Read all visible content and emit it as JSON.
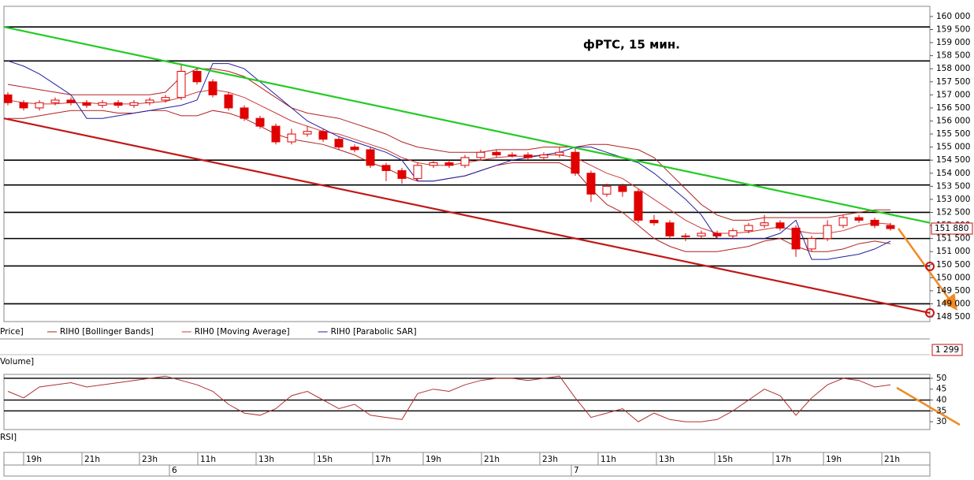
{
  "chart_data": {
    "type": "candlestick",
    "title": "фРТС,   15 мин.",
    "xlim": [
      -0.25,
      58.5
    ],
    "ylim": [
      148320,
      160390
    ],
    "yticks": [
      {
        "value": 160000,
        "label": "160 000"
      },
      {
        "value": 159500,
        "label": "159 500"
      },
      {
        "value": 159000,
        "label": "159 000"
      },
      {
        "value": 158500,
        "label": "158 500"
      },
      {
        "value": 158000,
        "label": "158 000"
      },
      {
        "value": 157500,
        "label": "157 500"
      },
      {
        "value": 157000,
        "label": "157 000"
      },
      {
        "value": 156500,
        "label": "156 500"
      },
      {
        "value": 156000,
        "label": "156 000"
      },
      {
        "value": 155500,
        "label": "155 500"
      },
      {
        "value": 155000,
        "label": "155 000"
      },
      {
        "value": 154500,
        "label": "154 500"
      },
      {
        "value": 154000,
        "label": "154 000"
      },
      {
        "value": 153500,
        "label": "153 500"
      },
      {
        "value": 153000,
        "label": "153 000"
      },
      {
        "value": 152500,
        "label": "152 500"
      },
      {
        "value": 152000,
        "label": "152 000"
      },
      {
        "value": 151500,
        "label": "151 500"
      },
      {
        "value": 151000,
        "label": "151 000"
      },
      {
        "value": 150500,
        "label": "150 500"
      },
      {
        "value": 150000,
        "label": "150 000"
      },
      {
        "value": 149500,
        "label": "149 500"
      },
      {
        "value": 149000,
        "label": "149 000"
      },
      {
        "value": 148500,
        "label": "148 500"
      }
    ],
    "ohlc": {
      "name": "Price]",
      "color": "#e00000",
      "open": [
        157000,
        156700,
        156500,
        156700,
        156800,
        156700,
        156600,
        156700,
        156600,
        156700,
        156800,
        156900,
        157900,
        157500,
        157000,
        156500,
        156100,
        155800,
        155200,
        155500,
        155600,
        155300,
        155000,
        154900,
        154300,
        154100,
        153800,
        154300,
        154400,
        154300,
        154600,
        154800,
        154700,
        154700,
        154600,
        154700,
        154800,
        154000,
        153200,
        153500,
        153300,
        152200,
        152100,
        151600,
        151600,
        151700,
        151600,
        151800,
        152000,
        152100,
        151900,
        151100,
        151500,
        152000,
        152300,
        152200,
        152000
      ],
      "high": [
        157100,
        156800,
        156800,
        156900,
        156900,
        156800,
        156800,
        156800,
        156800,
        156900,
        157000,
        158200,
        158000,
        157600,
        157100,
        156600,
        156200,
        155900,
        155700,
        155800,
        155700,
        155400,
        155100,
        155000,
        154400,
        154200,
        154400,
        154500,
        154500,
        154700,
        154900,
        154900,
        154800,
        154800,
        154800,
        155000,
        155000,
        154100,
        153600,
        153600,
        153400,
        152400,
        152200,
        151700,
        151800,
        151800,
        151900,
        152100,
        152400,
        152200,
        152000,
        151600,
        152200,
        152400,
        152400,
        152300,
        152100
      ],
      "low": [
        156600,
        156400,
        156400,
        156600,
        156600,
        156500,
        156500,
        156500,
        156500,
        156600,
        156700,
        156800,
        157400,
        156900,
        156400,
        156000,
        155700,
        155100,
        155100,
        155400,
        155200,
        154900,
        154800,
        154200,
        153700,
        153600,
        153700,
        154200,
        154200,
        154200,
        154500,
        154600,
        154600,
        154500,
        154500,
        154600,
        153900,
        152900,
        153100,
        153100,
        152100,
        152000,
        151500,
        151400,
        151500,
        151500,
        151500,
        151700,
        151900,
        151800,
        150800,
        151000,
        151400,
        151900,
        152100,
        151900,
        151800
      ],
      "close": [
        156700,
        156500,
        156700,
        156800,
        156700,
        156600,
        156700,
        156600,
        156700,
        156800,
        156900,
        157900,
        157500,
        157000,
        156500,
        156100,
        155800,
        155200,
        155500,
        155600,
        155300,
        155000,
        154900,
        154300,
        154100,
        153800,
        154300,
        154400,
        154300,
        154600,
        154800,
        154700,
        154700,
        154600,
        154700,
        154800,
        154000,
        153200,
        153500,
        153300,
        152200,
        152100,
        151600,
        151600,
        151700,
        151600,
        151800,
        152000,
        152100,
        151900,
        151100,
        151500,
        152000,
        152300,
        152200,
        152000,
        151880
      ]
    },
    "series": [
      {
        "name": "RIH0 [Bollinger Bands]",
        "color": "#b22222",
        "upper": [
          157400,
          157300,
          157200,
          157100,
          157000,
          157000,
          157000,
          157000,
          157000,
          157000,
          157100,
          157700,
          158000,
          158000,
          157900,
          157700,
          157300,
          156900,
          156500,
          156300,
          156200,
          156100,
          155900,
          155700,
          155500,
          155200,
          155000,
          154900,
          154800,
          154800,
          154800,
          154900,
          154900,
          154900,
          155000,
          155000,
          155000,
          155100,
          155100,
          155000,
          154900,
          154600,
          154000,
          153400,
          152800,
          152400,
          152200,
          152200,
          152300,
          152300,
          152300,
          152300,
          152300,
          152400,
          152500,
          152600,
          152600
        ],
        "lower": [
          156100,
          156100,
          156200,
          156300,
          156400,
          156400,
          156400,
          156300,
          156300,
          156400,
          156400,
          156200,
          156200,
          156400,
          156300,
          156100,
          155800,
          155500,
          155300,
          155200,
          155100,
          154900,
          154700,
          154400,
          154200,
          153900,
          153700,
          153700,
          153800,
          153900,
          154100,
          154300,
          154400,
          154400,
          154400,
          154400,
          154100,
          153400,
          152800,
          152500,
          152000,
          151500,
          151200,
          151000,
          151000,
          151000,
          151100,
          151200,
          151400,
          151500,
          151200,
          151000,
          151000,
          151100,
          151300,
          151400,
          151300
        ]
      },
      {
        "name": "RIH0 [Moving Average]",
        "color": "#cc3b3b",
        "values": [
          156800,
          156700,
          156650,
          156650,
          156700,
          156700,
          156650,
          156650,
          156650,
          156700,
          156750,
          156900,
          157100,
          157200,
          157100,
          156900,
          156600,
          156300,
          156000,
          155800,
          155600,
          155500,
          155300,
          155100,
          154900,
          154600,
          154400,
          154300,
          154300,
          154400,
          154500,
          154600,
          154650,
          154650,
          154700,
          154700,
          154600,
          154300,
          154000,
          153800,
          153400,
          153000,
          152600,
          152200,
          151900,
          151700,
          151700,
          151750,
          151850,
          151950,
          151800,
          151700,
          151700,
          151800,
          152000,
          152100,
          152050
        ]
      },
      {
        "name": "RIH0 [Parabolic SAR]",
        "color": "#2020a0",
        "values": [
          158300,
          158100,
          157800,
          157400,
          157000,
          156100,
          156100,
          156200,
          156300,
          156400,
          156500,
          156600,
          156800,
          158200,
          158200,
          158000,
          157500,
          157000,
          156500,
          156000,
          155700,
          155400,
          155200,
          155000,
          154800,
          154500,
          153700,
          153700,
          153800,
          153900,
          154100,
          154300,
          154500,
          154600,
          154700,
          154800,
          155000,
          155000,
          154800,
          154600,
          154400,
          154000,
          153500,
          153000,
          152400,
          151500,
          151500,
          151500,
          151500,
          151700,
          152200,
          150700,
          150700,
          150800,
          150900,
          151100,
          151400
        ]
      }
    ],
    "levels": {
      "color": "#000000",
      "values": [
        159600,
        158300,
        154500,
        153550,
        152500,
        151500,
        150450,
        149000
      ]
    },
    "trendlines": [
      {
        "color": "#22cc22",
        "x": [
          -0.25,
          58.5
        ],
        "values": [
          159600,
          152100
        ]
      },
      {
        "color": "#c01818",
        "x": [
          -0.25,
          58.5
        ],
        "values": [
          156100,
          148650
        ]
      }
    ],
    "last_price": {
      "value": 151880,
      "label": "151 880"
    },
    "volume": {
      "name": "Volume]",
      "value": 1299,
      "label": "1 299"
    },
    "rsi": {
      "name": "RSI]",
      "color": "#b03030",
      "values": [
        44,
        41,
        46,
        47,
        48,
        46,
        47,
        48,
        49,
        50,
        51,
        49,
        47,
        44,
        38,
        34,
        33,
        36,
        42,
        44,
        40,
        36,
        38,
        33,
        32,
        31,
        43,
        45,
        44,
        47,
        49,
        50,
        50,
        49,
        50,
        51,
        41,
        32,
        34,
        36,
        30,
        34,
        31,
        30,
        30,
        31,
        35,
        40,
        45,
        42,
        33,
        41,
        47,
        50,
        49,
        46,
        47
      ],
      "ylim": [
        26.4,
        51.8
      ],
      "yticks": [
        50,
        45,
        40,
        35,
        30
      ],
      "levels": [
        50,
        40,
        35
      ]
    },
    "xticks": [
      {
        "value": 1,
        "label": "19h"
      },
      {
        "value": 4.7,
        "label": "21h"
      },
      {
        "value": 8.35,
        "label": "23h"
      },
      {
        "value": 12.05,
        "label": "11h"
      },
      {
        "value": 15.75,
        "label": "13h"
      },
      {
        "value": 19.45,
        "label": "15h"
      },
      {
        "value": 23.15,
        "label": "17h"
      },
      {
        "value": 26.35,
        "label": "19h"
      },
      {
        "value": 30.05,
        "label": "21h"
      },
      {
        "value": 33.75,
        "label": "23h"
      },
      {
        "value": 37.45,
        "label": "11h"
      },
      {
        "value": 41.15,
        "label": "13h"
      },
      {
        "value": 44.85,
        "label": "15h"
      },
      {
        "value": 48.55,
        "label": "17h"
      },
      {
        "value": 51.75,
        "label": "19h"
      },
      {
        "value": 55.45,
        "label": "21h"
      }
    ],
    "date_ticks": [
      {
        "value": 10.25,
        "label": "6"
      },
      {
        "value": 35.75,
        "label": "7"
      }
    ]
  }
}
